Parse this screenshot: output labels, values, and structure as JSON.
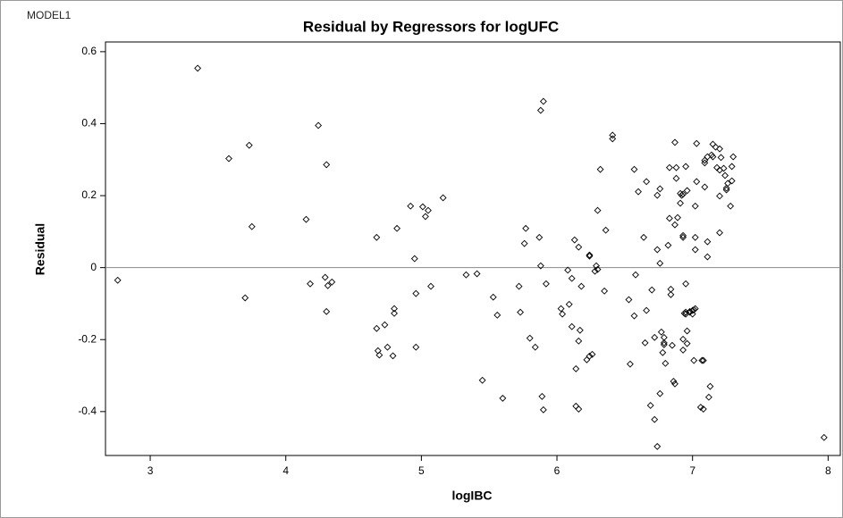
{
  "chart_data": {
    "type": "scatter",
    "model_label": "MODEL1",
    "title": "Residual by Regressors for logUFC",
    "x_label": "logIBC",
    "y_label": "Residual",
    "marker": "diamond",
    "color": "#000000",
    "xlim": [
      2.67,
      8.09
    ],
    "ylim": [
      -0.522,
      0.627
    ],
    "xticks": [
      3,
      4,
      5,
      6,
      7,
      8
    ],
    "yticks": [
      -0.4,
      -0.2,
      0,
      0.2,
      0.4,
      0.6
    ],
    "reference_line": 0,
    "x": [
      2.76,
      3.35,
      3.58,
      3.73,
      3.75,
      3.7,
      4.15,
      4.18,
      4.24,
      4.3,
      4.29,
      4.31,
      4.34,
      4.3,
      4.67,
      4.67,
      4.73,
      4.68,
      4.69,
      4.75,
      4.79,
      4.8,
      4.8,
      4.82,
      4.92,
      4.95,
      4.96,
      4.96,
      5.01,
      5.03,
      5.05,
      5.07,
      5.16,
      5.33,
      5.41,
      5.45,
      5.53,
      5.56,
      5.6,
      5.72,
      5.73,
      5.77,
      5.76,
      5.8,
      5.84,
      5.87,
      5.88,
      5.88,
      5.9,
      5.89,
      5.9,
      5.92,
      6.03,
      6.04,
      6.08,
      6.11,
      6.09,
      6.11,
      6.13,
      6.16,
      6.17,
      6.16,
      6.14,
      6.14,
      6.16,
      6.18,
      6.22,
      6.24,
      6.24,
      6.24,
      6.26,
      6.29,
      6.3,
      6.28,
      6.3,
      6.32,
      6.35,
      6.36,
      6.41,
      6.41,
      6.53,
      6.54,
      6.57,
      6.58,
      6.57,
      6.6,
      6.64,
      6.66,
      6.66,
      6.65,
      6.69,
      6.7,
      6.72,
      6.72,
      6.74,
      6.74,
      6.74,
      6.76,
      6.76,
      6.76,
      6.77,
      6.78,
      6.79,
      6.79,
      6.79,
      6.8,
      6.82,
      6.83,
      6.83,
      6.84,
      6.84,
      6.85,
      6.86,
      6.87,
      6.87,
      6.87,
      6.88,
      6.88,
      6.89,
      6.91,
      6.91,
      6.92,
      6.93,
      6.93,
      6.93,
      6.93,
      6.93,
      6.94,
      6.95,
      6.95,
      6.95,
      6.95,
      6.96,
      6.96,
      6.96,
      6.98,
      6.98,
      7.0,
      7.0,
      7.01,
      7.02,
      7.01,
      7.02,
      7.02,
      7.02,
      7.03,
      7.03,
      7.06,
      7.08,
      7.09,
      7.09,
      7.09,
      7.08,
      7.07,
      7.11,
      7.11,
      7.11,
      7.13,
      7.12,
      7.14,
      7.15,
      7.15,
      7.17,
      7.18,
      7.2,
      7.2,
      7.2,
      7.2,
      7.21,
      7.23,
      7.24,
      7.25,
      7.25,
      7.26,
      7.28,
      7.29,
      7.29,
      7.3,
      7.97
    ],
    "y": [
      -0.035,
      0.554,
      0.303,
      0.34,
      0.114,
      -0.084,
      0.134,
      -0.045,
      0.395,
      0.286,
      -0.027,
      -0.05,
      -0.04,
      -0.122,
      0.084,
      -0.169,
      -0.159,
      -0.231,
      -0.243,
      -0.221,
      -0.245,
      -0.114,
      -0.127,
      0.109,
      0.171,
      0.025,
      -0.072,
      -0.221,
      0.169,
      0.142,
      0.159,
      -0.052,
      0.194,
      -0.02,
      -0.017,
      -0.313,
      -0.082,
      -0.132,
      -0.363,
      -0.052,
      -0.124,
      0.109,
      0.067,
      -0.196,
      -0.221,
      0.084,
      0.005,
      0.437,
      0.462,
      -0.358,
      -0.395,
      -0.045,
      -0.114,
      -0.129,
      -0.007,
      -0.03,
      -0.102,
      -0.164,
      0.077,
      0.057,
      -0.174,
      -0.204,
      -0.281,
      -0.385,
      -0.393,
      -0.052,
      -0.256,
      0.035,
      0.032,
      -0.246,
      -0.241,
      0.005,
      -0.005,
      -0.01,
      0.159,
      0.273,
      -0.065,
      0.104,
      0.358,
      0.368,
      -0.089,
      -0.268,
      0.273,
      -0.02,
      -0.134,
      0.211,
      0.084,
      0.239,
      -0.119,
      -0.209,
      -0.383,
      -0.062,
      -0.422,
      -0.194,
      0.201,
      0.05,
      -0.497,
      -0.35,
      0.219,
      0.012,
      -0.179,
      -0.236,
      -0.194,
      -0.209,
      -0.214,
      -0.266,
      0.062,
      0.278,
      0.137,
      -0.06,
      -0.075,
      -0.216,
      -0.316,
      -0.323,
      0.119,
      0.348,
      0.278,
      0.248,
      0.139,
      0.206,
      0.179,
      0.201,
      0.204,
      0.084,
      0.089,
      -0.199,
      -0.229,
      -0.127,
      -0.129,
      -0.124,
      -0.045,
      0.281,
      0.214,
      -0.176,
      -0.211,
      -0.124,
      -0.122,
      -0.129,
      -0.119,
      -0.117,
      -0.114,
      -0.258,
      0.171,
      0.05,
      0.084,
      0.345,
      0.239,
      -0.388,
      -0.393,
      0.291,
      0.298,
      0.224,
      -0.258,
      -0.258,
      0.308,
      0.072,
      0.03,
      -0.33,
      -0.36,
      0.313,
      0.308,
      0.343,
      0.335,
      0.278,
      0.33,
      0.199,
      0.097,
      0.271,
      0.306,
      0.276,
      0.256,
      0.216,
      0.221,
      0.234,
      0.171,
      0.241,
      0.281,
      0.308,
      -0.472
    ]
  }
}
